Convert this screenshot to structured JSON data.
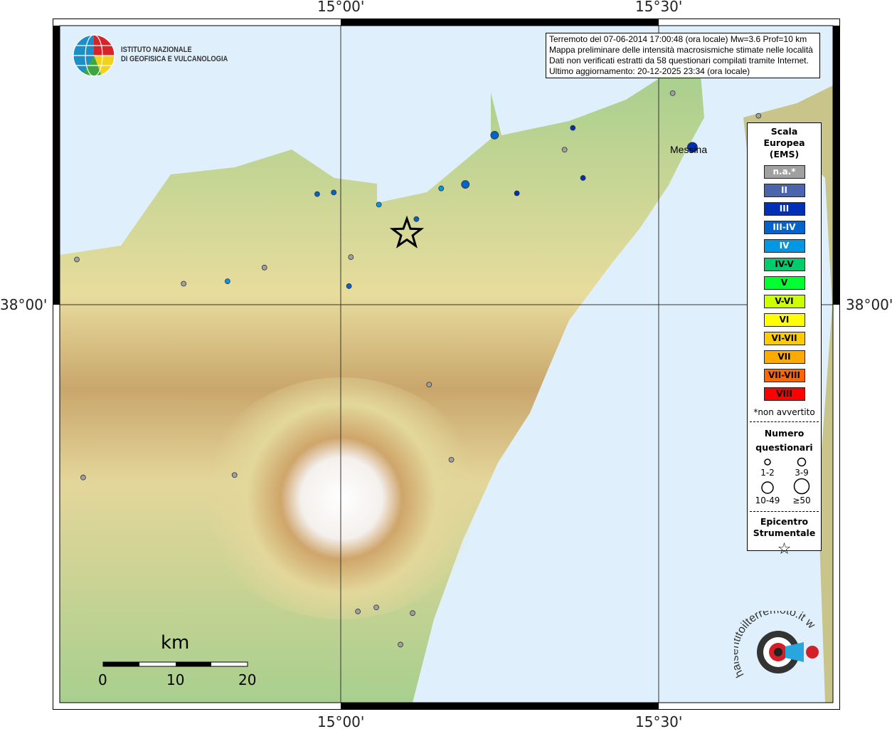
{
  "axes": {
    "lon_ticks": [
      "15°00'",
      "15°30'"
    ],
    "lat_ticks": [
      "38°00'"
    ]
  },
  "info": {
    "lines": [
      "Terremoto del 07-06-2014 17:00:48 (ora locale) Mw=3.6 Prof=10 km",
      "Mappa preliminare delle intensità macrosismiche stimate nelle località",
      "Dati non verificati estratti da 58 questionari compilati tramite Internet.",
      "Ultimo aggiornamento: 20-12-2025 23:34 (ora locale)"
    ]
  },
  "logo": {
    "name_line1": "ISTITUTO NAZIONALE",
    "name_line2": "DI GEOFISICA E VULCANOLOGIA",
    "hsit": "haisentitoilterremoto.it www."
  },
  "place": {
    "label": "Messina"
  },
  "legend": {
    "title_lines": [
      "Scala",
      "Europea",
      "(EMS)"
    ],
    "items": [
      {
        "label": "n.a.*",
        "color": "#a0a0a0",
        "text": "#ffffff"
      },
      {
        "label": "II",
        "color": "#4a64ae",
        "text": "#ffffff"
      },
      {
        "label": "III",
        "color": "#0030b8",
        "text": "#ffffff"
      },
      {
        "label": "III-IV",
        "color": "#0064cc",
        "text": "#ffffff"
      },
      {
        "label": "IV",
        "color": "#0098e4",
        "text": "#ffffff"
      },
      {
        "label": "IV-V",
        "color": "#00cc6c",
        "text": "#000000"
      },
      {
        "label": "V",
        "color": "#00ff30",
        "text": "#000000"
      },
      {
        "label": "V-VI",
        "color": "#ccff00",
        "text": "#000000"
      },
      {
        "label": "VI",
        "color": "#ffff00",
        "text": "#000000"
      },
      {
        "label": "VI-VII",
        "color": "#ffcc00",
        "text": "#000000"
      },
      {
        "label": "VII",
        "color": "#ffaa00",
        "text": "#000000"
      },
      {
        "label": "VII-VIII",
        "color": "#ff6600",
        "text": "#000000"
      },
      {
        "label": "VIII",
        "color": "#ff0000",
        "text": "#000000"
      }
    ],
    "note": "*non avvertito",
    "count_title_lines": [
      "Numero",
      "questionari"
    ],
    "counts": [
      "1-2",
      "3-9",
      "10-49",
      "≥50"
    ],
    "epi_title_lines": [
      "Epicentro",
      "Strumentale"
    ]
  },
  "scalebar": {
    "unit": "km",
    "labels": [
      "0",
      "10",
      "20"
    ]
  },
  "epicenter": {
    "lon": 15.104,
    "lat": 38.088
  },
  "points": [
    {
      "lon": 14.585,
      "lat": 38.056,
      "i": "n.a.",
      "n": 1
    },
    {
      "lon": 14.753,
      "lat": 38.026,
      "i": "n.a.",
      "n": 1
    },
    {
      "lon": 14.822,
      "lat": 38.029,
      "i": "IV",
      "n": 1
    },
    {
      "lon": 14.88,
      "lat": 38.046,
      "i": "n.a.",
      "n": 1
    },
    {
      "lon": 14.963,
      "lat": 38.137,
      "i": "III-IV",
      "n": 1
    },
    {
      "lon": 14.989,
      "lat": 38.139,
      "i": "III-IV",
      "n": 1
    },
    {
      "lon": 15.016,
      "lat": 38.059,
      "i": "n.a.",
      "n": 1
    },
    {
      "lon": 15.013,
      "lat": 38.023,
      "i": "III-IV",
      "n": 1
    },
    {
      "lon": 15.06,
      "lat": 38.124,
      "i": "IV",
      "n": 1
    },
    {
      "lon": 15.119,
      "lat": 38.106,
      "i": "III-IV",
      "n": 1
    },
    {
      "lon": 15.158,
      "lat": 38.144,
      "i": "IV",
      "n": 1
    },
    {
      "lon": 15.196,
      "lat": 38.149,
      "i": "III-IV",
      "n": 3
    },
    {
      "lon": 15.242,
      "lat": 38.21,
      "i": "III-IV",
      "n": 3
    },
    {
      "lon": 15.277,
      "lat": 38.138,
      "i": "III",
      "n": 1
    },
    {
      "lon": 15.352,
      "lat": 38.192,
      "i": "n.a.",
      "n": 1
    },
    {
      "lon": 15.365,
      "lat": 38.219,
      "i": "III",
      "n": 1
    },
    {
      "lon": 15.381,
      "lat": 38.157,
      "i": "III",
      "n": 1
    },
    {
      "lon": 15.522,
      "lat": 38.262,
      "i": "n.a.",
      "n": 1
    },
    {
      "lon": 15.553,
      "lat": 38.195,
      "i": "III",
      "n": 10
    },
    {
      "lon": 15.657,
      "lat": 38.234,
      "i": "n.a.",
      "n": 1
    },
    {
      "lon": 15.139,
      "lat": 37.901,
      "i": "n.a.",
      "n": 1
    },
    {
      "lon": 15.174,
      "lat": 37.808,
      "i": "n.a.",
      "n": 1
    },
    {
      "lon": 14.595,
      "lat": 37.786,
      "i": "n.a.",
      "n": 1
    },
    {
      "lon": 14.833,
      "lat": 37.789,
      "i": "n.a.",
      "n": 1
    },
    {
      "lon": 15.027,
      "lat": 37.62,
      "i": "n.a.",
      "n": 1
    },
    {
      "lon": 15.056,
      "lat": 37.625,
      "i": "n.a.",
      "n": 1
    },
    {
      "lon": 15.113,
      "lat": 37.618,
      "i": "n.a.",
      "n": 1
    },
    {
      "lon": 15.094,
      "lat": 37.579,
      "i": "n.a.",
      "n": 1
    }
  ],
  "colors": {
    "sea": "#dff0fc",
    "land": "#a8cf8e"
  }
}
